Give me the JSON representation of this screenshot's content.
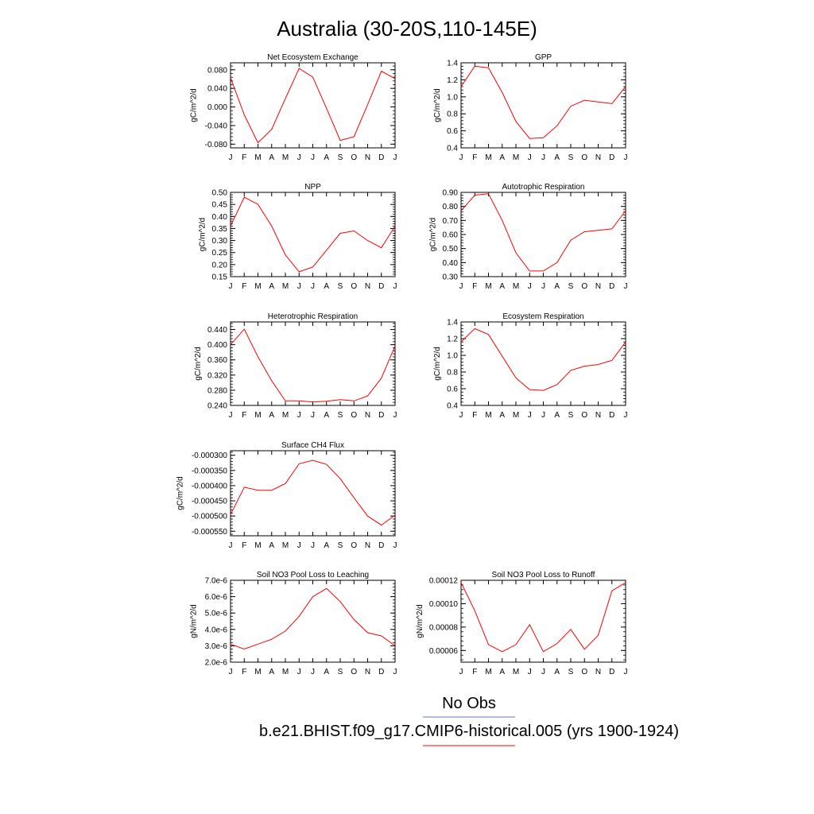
{
  "title": "Australia (30-20S,110-145E)",
  "colors": {
    "model": "#ff0000",
    "obs": "#6b6bff",
    "axis": "#000000"
  },
  "months": [
    "J",
    "F",
    "M",
    "A",
    "M",
    "J",
    "J",
    "A",
    "S",
    "O",
    "N",
    "D",
    "J"
  ],
  "legend": [
    {
      "label": "No Obs",
      "color": "#6b6bff"
    },
    {
      "label": "b.e21.BHIST.f09_g17.CMIP6-historical.005 (yrs 1900-1924)",
      "color": "#ff0000"
    }
  ],
  "chart_data": [
    {
      "type": "line",
      "title": "Net Ecosystem Exchange",
      "ylabel": "gC/m^2/d",
      "ylim": [
        -0.088,
        0.095
      ],
      "yticks": [
        -0.08,
        -0.04,
        0.0,
        0.04,
        0.08
      ],
      "ytick_labels": [
        "-0.080",
        "-0.040",
        "0.000",
        "0.040",
        "0.080"
      ],
      "series": [
        {
          "values": [
            0.063,
            -0.017,
            -0.077,
            -0.048,
            0.018,
            0.083,
            0.064,
            -0.003,
            -0.072,
            -0.064,
            0.005,
            0.077,
            0.061
          ]
        }
      ]
    },
    {
      "type": "line",
      "title": "GPP",
      "ylabel": "gC/m^2/d",
      "ylim": [
        0.4,
        1.4
      ],
      "yticks": [
        0.4,
        0.6,
        0.8,
        1.0,
        1.2,
        1.4
      ],
      "ytick_labels": [
        "0.4",
        "0.6",
        "0.8",
        "1.0",
        "1.2",
        "1.4"
      ],
      "series": [
        {
          "values": [
            1.12,
            1.36,
            1.34,
            1.05,
            0.71,
            0.51,
            0.52,
            0.66,
            0.89,
            0.96,
            0.94,
            0.92,
            1.12
          ]
        }
      ]
    },
    {
      "type": "line",
      "title": "NPP",
      "ylabel": "gC/m^2/d",
      "ylim": [
        0.15,
        0.5
      ],
      "yticks": [
        0.15,
        0.2,
        0.25,
        0.3,
        0.35,
        0.4,
        0.45,
        0.5
      ],
      "ytick_labels": [
        "0.15",
        "0.20",
        "0.25",
        "0.30",
        "0.35",
        "0.40",
        "0.45",
        "0.50"
      ],
      "series": [
        {
          "values": [
            0.36,
            0.48,
            0.45,
            0.36,
            0.24,
            0.17,
            0.19,
            0.26,
            0.33,
            0.34,
            0.3,
            0.27,
            0.36
          ]
        }
      ]
    },
    {
      "type": "line",
      "title": "Autotrophic Respiration",
      "ylabel": "gC/m^2/d",
      "ylim": [
        0.3,
        0.9
      ],
      "yticks": [
        0.3,
        0.4,
        0.5,
        0.6,
        0.7,
        0.8,
        0.9
      ],
      "ytick_labels": [
        "0.30",
        "0.40",
        "0.50",
        "0.60",
        "0.70",
        "0.80",
        "0.90"
      ],
      "series": [
        {
          "values": [
            0.77,
            0.88,
            0.89,
            0.7,
            0.47,
            0.34,
            0.34,
            0.4,
            0.56,
            0.62,
            0.63,
            0.64,
            0.77
          ]
        }
      ]
    },
    {
      "type": "line",
      "title": "Heterotrophic Respiration",
      "ylabel": "gC/m^2/d",
      "ylim": [
        0.24,
        0.46
      ],
      "yticks": [
        0.24,
        0.28,
        0.32,
        0.36,
        0.4,
        0.44
      ],
      "ytick_labels": [
        "0.240",
        "0.280",
        "0.320",
        "0.360",
        "0.400",
        "0.440"
      ],
      "series": [
        {
          "values": [
            0.4,
            0.441,
            0.368,
            0.305,
            0.252,
            0.252,
            0.249,
            0.251,
            0.255,
            0.252,
            0.265,
            0.312,
            0.397
          ]
        }
      ]
    },
    {
      "type": "line",
      "title": "Ecosystem Respiration",
      "ylabel": "gC/m^2/d",
      "ylim": [
        0.4,
        1.4
      ],
      "yticks": [
        0.4,
        0.6,
        0.8,
        1.0,
        1.2,
        1.4
      ],
      "ytick_labels": [
        "0.4",
        "0.6",
        "0.8",
        "1.0",
        "1.2",
        "1.4"
      ],
      "series": [
        {
          "values": [
            1.16,
            1.32,
            1.25,
            0.99,
            0.73,
            0.59,
            0.58,
            0.65,
            0.82,
            0.87,
            0.89,
            0.94,
            1.16
          ]
        }
      ]
    },
    {
      "type": "line",
      "title": "Surface CH4 Flux",
      "ylabel": "gC/m^2/d",
      "ylim": [
        -0.000565,
        -0.000285
      ],
      "yticks": [
        -0.00055,
        -0.0005,
        -0.00045,
        -0.0004,
        -0.00035,
        -0.0003
      ],
      "ytick_labels": [
        "-0.000550",
        "-0.000500",
        "-0.000450",
        "-0.000400",
        "-0.000350",
        "-0.000300"
      ],
      "series": [
        {
          "values": [
            -0.000495,
            -0.000405,
            -0.000415,
            -0.000415,
            -0.000393,
            -0.000328,
            -0.000317,
            -0.00033,
            -0.000377,
            -0.00044,
            -0.0005,
            -0.00053,
            -0.000497
          ]
        }
      ]
    },
    {
      "type": "line",
      "title": "Soil NO3 Pool Loss to Leaching",
      "ylabel": "gN/m^2/d",
      "ylim": [
        2e-06,
        7e-06
      ],
      "yticks": [
        2e-06,
        3e-06,
        4e-06,
        5e-06,
        6e-06,
        7e-06
      ],
      "ytick_labels": [
        "2.0e-6",
        "3.0e-6",
        "4.0e-6",
        "5.0e-6",
        "6.0e-6",
        "7.0e-6"
      ],
      "series": [
        {
          "values": [
            3.1e-06,
            2.8e-06,
            3.1e-06,
            3.4e-06,
            3.9e-06,
            4.8e-06,
            6e-06,
            6.5e-06,
            5.7e-06,
            4.6e-06,
            3.8e-06,
            3.6e-06,
            3e-06
          ]
        }
      ]
    },
    {
      "type": "line",
      "title": "Soil NO3 Pool Loss to Runoff",
      "ylabel": "gN/m^2/d",
      "ylim": [
        5e-05,
        0.00012
      ],
      "yticks": [
        6e-05,
        8e-05,
        0.0001,
        0.00012
      ],
      "ytick_labels": [
        "0.00006",
        "0.00008",
        "0.00010",
        "0.00012"
      ],
      "series": [
        {
          "values": [
            0.000118,
            9.4e-05,
            6.5e-05,
            5.9e-05,
            6.5e-05,
            8.2e-05,
            5.9e-05,
            6.6e-05,
            7.8e-05,
            6.1e-05,
            7.3e-05,
            0.000111,
            0.000118
          ]
        }
      ]
    }
  ]
}
